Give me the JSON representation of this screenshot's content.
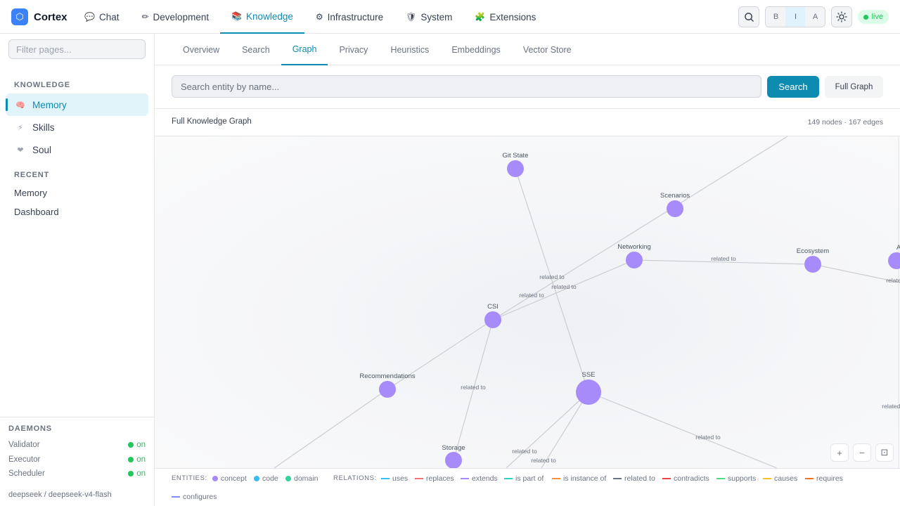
{
  "brand": {
    "logo": "⬡",
    "name": "Cortex"
  },
  "nav": [
    {
      "icon": "💬",
      "label": "Chat"
    },
    {
      "icon": "✏",
      "label": "Development"
    },
    {
      "icon": "📚",
      "label": "Knowledge"
    },
    {
      "icon": "⚙",
      "label": "Infrastructure"
    },
    {
      "icon": "🛡",
      "label": "System"
    },
    {
      "icon": "🧩",
      "label": "Extensions"
    }
  ],
  "topright": {
    "modes": [
      "B",
      "I",
      "A"
    ],
    "live": "live"
  },
  "sidebar": {
    "filter_placeholder": "Filter pages...",
    "section_knowledge": "KNOWLEDGE",
    "items": [
      {
        "icon": "🧠",
        "label": "Memory"
      },
      {
        "icon": "⚡",
        "label": "Skills"
      },
      {
        "icon": "❤",
        "label": "Soul"
      }
    ],
    "section_recent": "RECENT",
    "recent": [
      "Memory",
      "Dashboard"
    ],
    "section_daemons": "DAEMONS",
    "daemons": [
      {
        "name": "Validator",
        "status": "on"
      },
      {
        "name": "Executor",
        "status": "on"
      },
      {
        "name": "Scheduler",
        "status": "on"
      }
    ],
    "model": "deepseek / deepseek-v4-flash"
  },
  "subtabs": [
    "Overview",
    "Search",
    "Graph",
    "Privacy",
    "Heuristics",
    "Embeddings",
    "Vector Store"
  ],
  "search": {
    "placeholder": "Search entity by name...",
    "button": "Search",
    "full_graph": "Full Graph"
  },
  "graph": {
    "title": "Full Knowledge Graph",
    "stats": "149 nodes · 167 edges",
    "nodes": [
      "Git State",
      "Scenarios",
      "Networking",
      "Ecosystem",
      "CSI",
      "SSE",
      "Recommendations",
      "Storage",
      "AR"
    ],
    "edge_label": "related to"
  },
  "zoom": {
    "in": "+",
    "out": "−",
    "fit": "⊡"
  },
  "legend": {
    "entities_label": "ENTITIES:",
    "entities": [
      {
        "label": "concept",
        "color": "#a78bfa"
      },
      {
        "label": "code",
        "color": "#38bdf8"
      },
      {
        "label": "domain",
        "color": "#34d399"
      }
    ],
    "relations_label": "RELATIONS:",
    "relations": [
      {
        "label": "uses",
        "color": "#38bdf8"
      },
      {
        "label": "replaces",
        "color": "#f87171"
      },
      {
        "label": "extends",
        "color": "#a78bfa"
      },
      {
        "label": "is part of",
        "color": "#2dd4bf"
      },
      {
        "label": "is instance of",
        "color": "#fb923c"
      },
      {
        "label": "related to",
        "color": "#6b7280"
      },
      {
        "label": "contradicts",
        "color": "#ef4444"
      },
      {
        "label": "supports",
        "color": "#4ade80"
      },
      {
        "label": "causes",
        "color": "#fbbf24"
      },
      {
        "label": "requires",
        "color": "#f97316"
      },
      {
        "label": "configures",
        "color": "#818cf8"
      }
    ]
  }
}
